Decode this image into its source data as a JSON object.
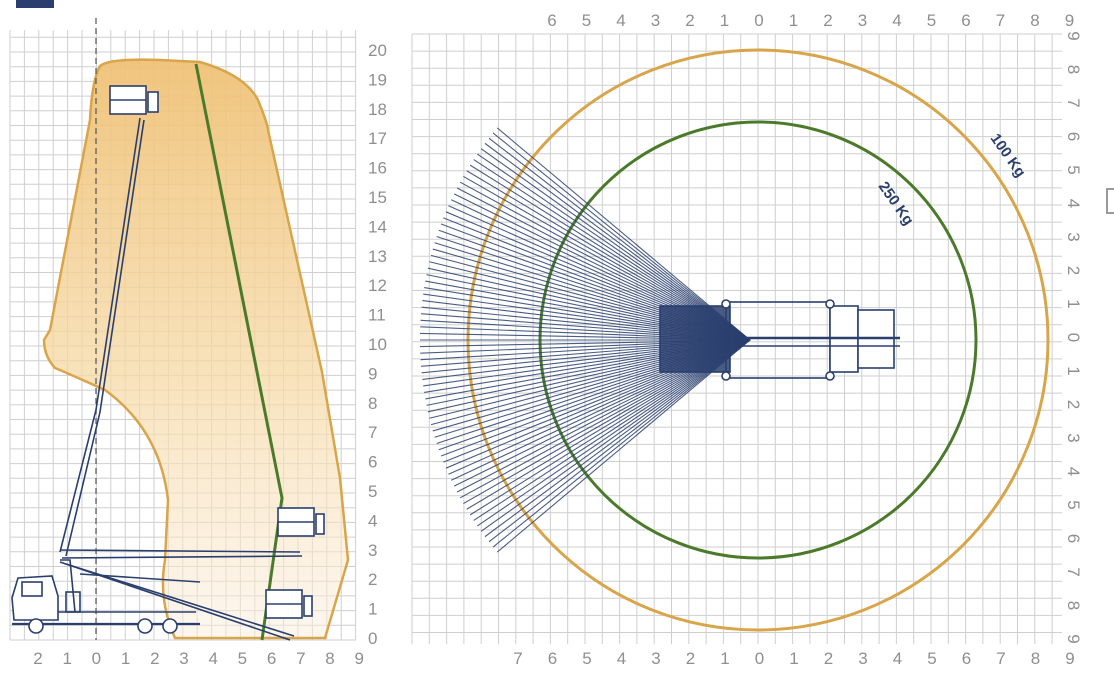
{
  "side_view": {
    "x_ticks": [
      "2",
      "1",
      "0",
      "1",
      "2",
      "3",
      "4",
      "5",
      "6",
      "7",
      "8",
      "9"
    ],
    "y_ticks": [
      "0",
      "1",
      "2",
      "3",
      "4",
      "5",
      "6",
      "7",
      "8",
      "9",
      "10",
      "11",
      "12",
      "13",
      "14",
      "15",
      "16",
      "17",
      "18",
      "19",
      "20"
    ]
  },
  "top_view": {
    "x_ticks_top": [
      "6",
      "5",
      "4",
      "3",
      "2",
      "1",
      "0",
      "1",
      "2",
      "3",
      "4",
      "5",
      "6",
      "7",
      "8",
      "9"
    ],
    "x_ticks_bottom": [
      "7",
      "6",
      "5",
      "4",
      "3",
      "2",
      "1",
      "0",
      "1",
      "2",
      "3",
      "4",
      "5",
      "6",
      "7",
      "8",
      "9"
    ],
    "y_ticks": [
      "9",
      "8",
      "7",
      "6",
      "5",
      "4",
      "3",
      "2",
      "1",
      "0",
      "1",
      "2",
      "3",
      "4",
      "5",
      "6",
      "7",
      "8",
      "9"
    ],
    "load_250_label": "250 Kg",
    "load_100_label": "100 Kg"
  },
  "colors": {
    "grid": "#cfcfcf",
    "envelope_fill": "#f2c77a",
    "envelope_stroke": "#d9a54a",
    "line_250": "#4a7a2a",
    "line_100": "#d9a54a",
    "machine": "#2a3f6e"
  }
}
